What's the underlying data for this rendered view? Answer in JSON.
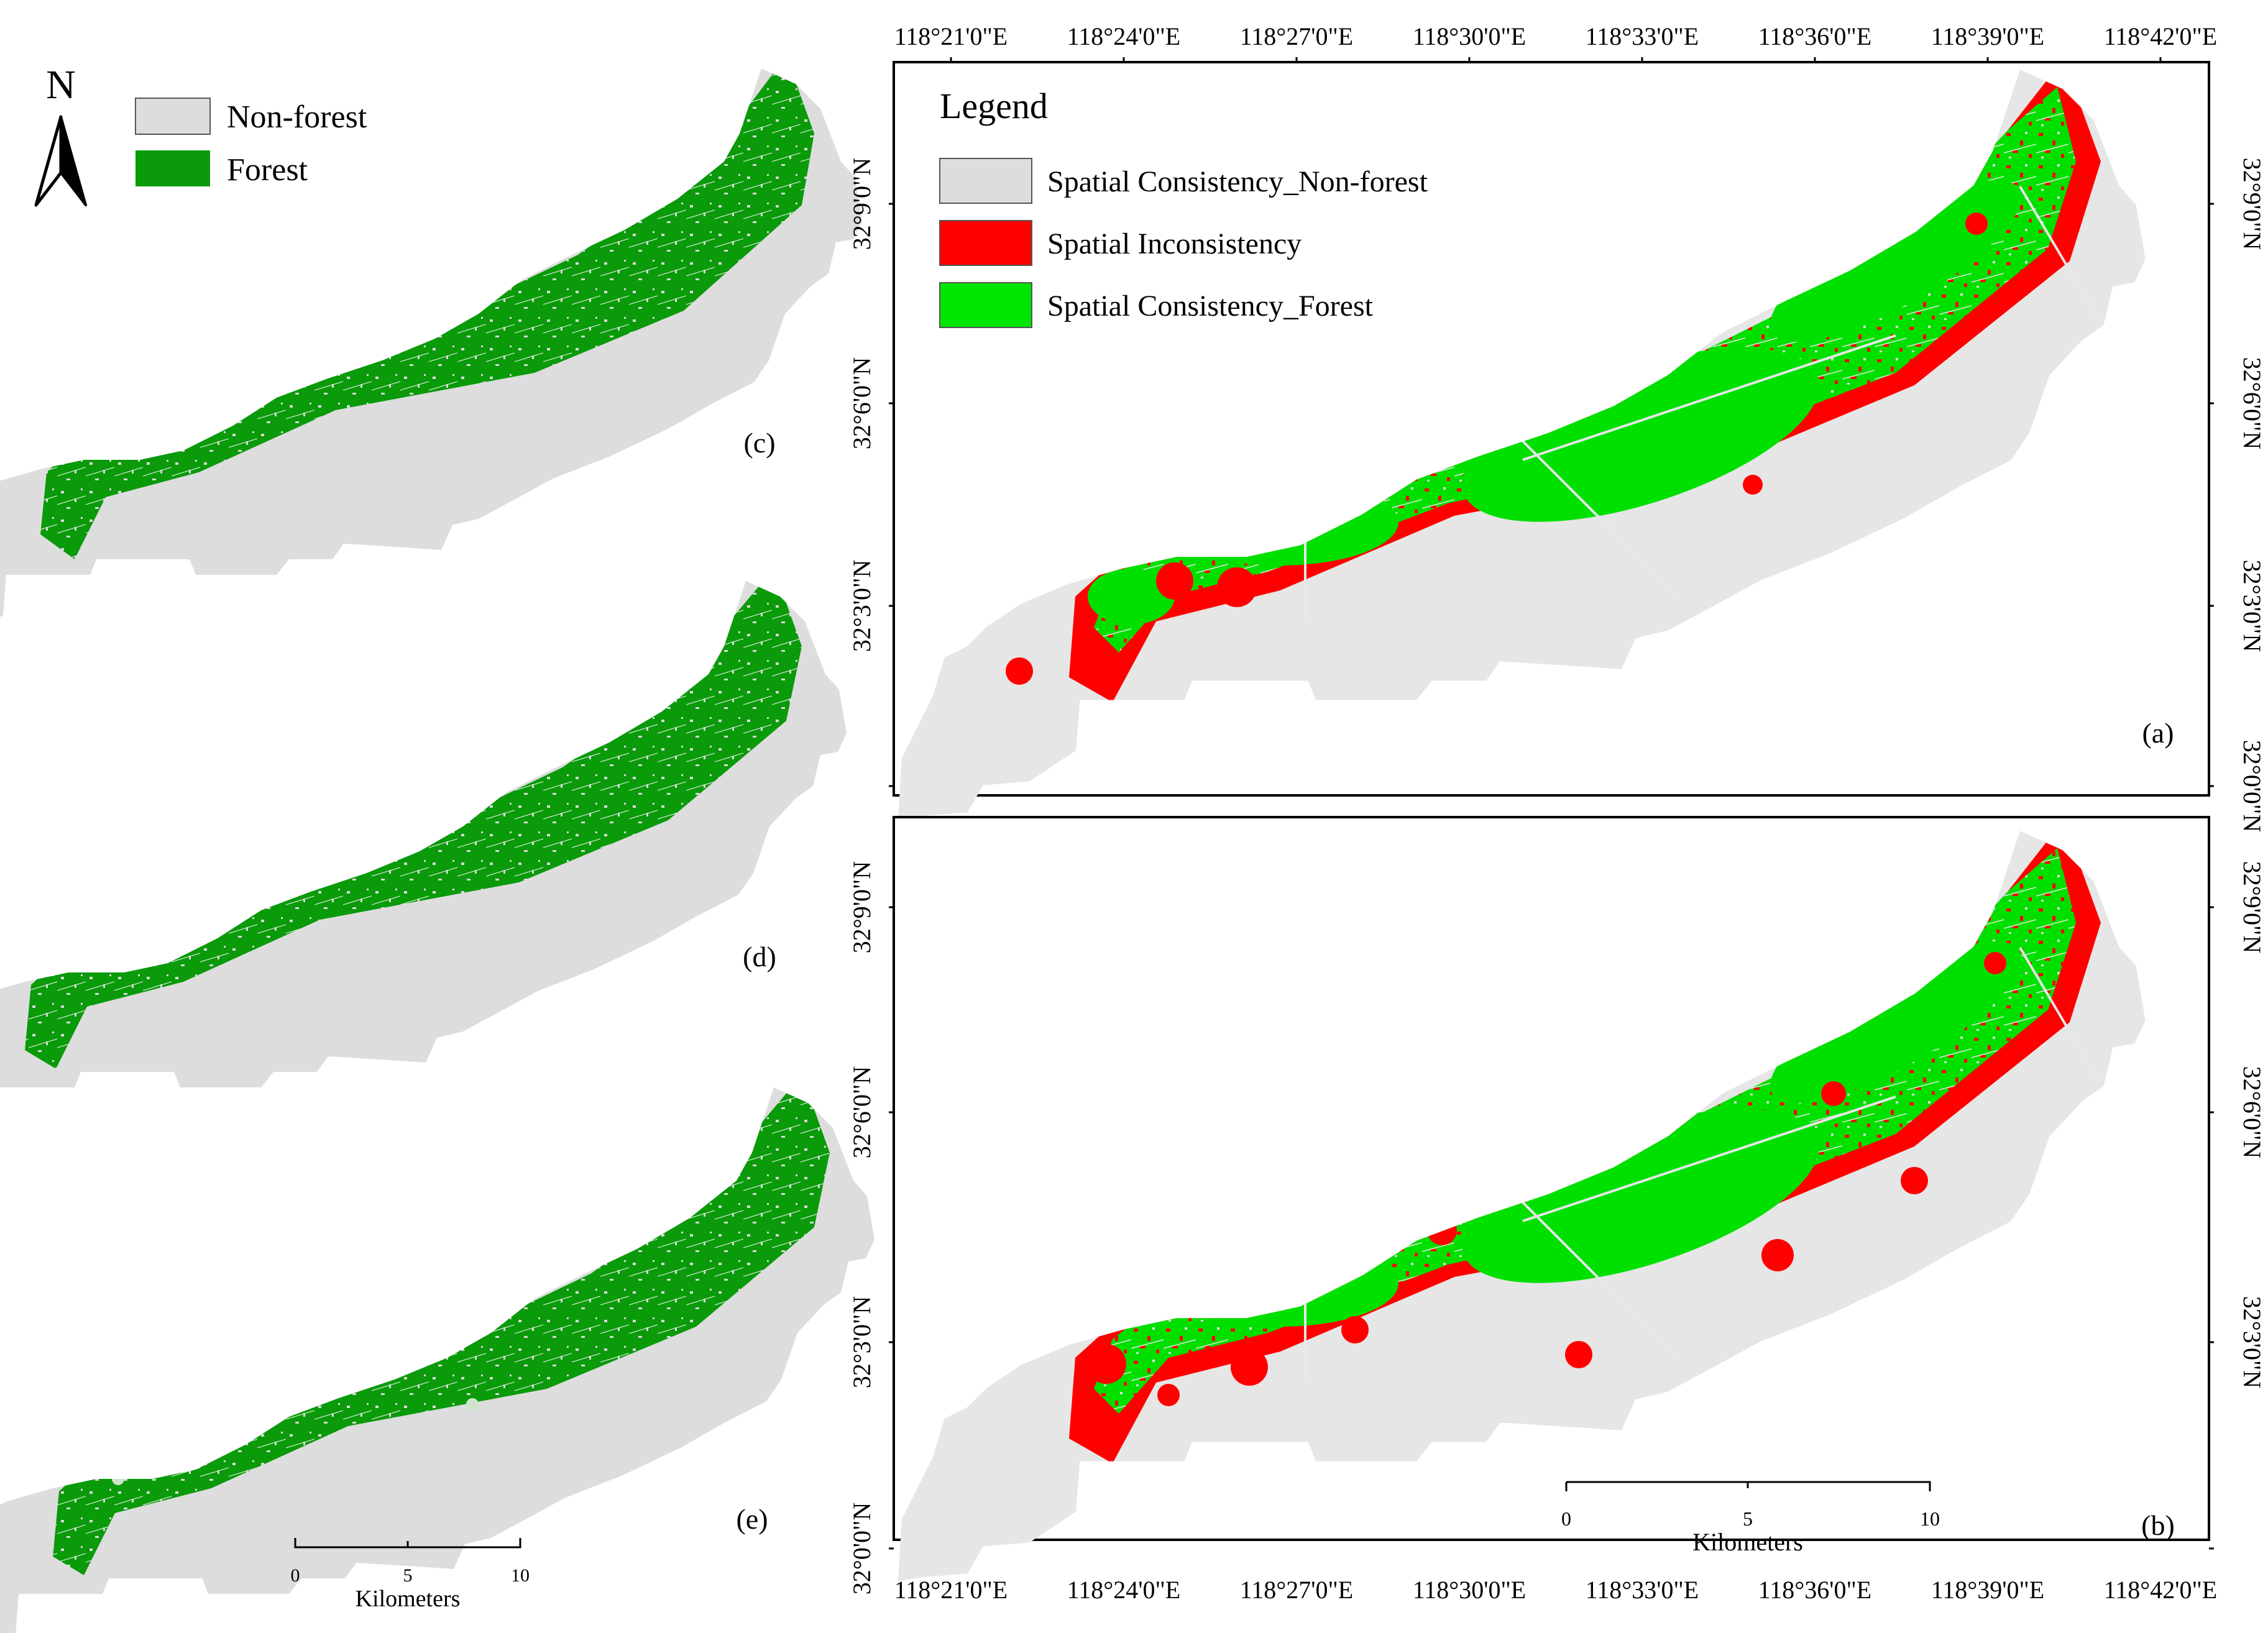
{
  "colors": {
    "non_forest": "#dddddd",
    "forest_dark": "#0a9a0a",
    "inconsistency": "#ff0000",
    "consistency_forest": "#00e600",
    "frame": "#000000"
  },
  "north_arrow": {
    "label": "N"
  },
  "left_legend": {
    "items": [
      {
        "label": "Non-forest",
        "color_key": "non_forest"
      },
      {
        "label": "Forest",
        "color_key": "forest_dark"
      }
    ]
  },
  "panel_labels": {
    "a": "(a)",
    "b": "(b)",
    "c": "(c)",
    "d": "(d)",
    "e": "(e)"
  },
  "main_legend": {
    "title": "Legend",
    "items": [
      {
        "label": "Spatial Consistency_Non-forest",
        "color_key": "non_forest"
      },
      {
        "label": "Spatial Inconsistency",
        "color_key": "inconsistency"
      },
      {
        "label": "Spatial Consistency_Forest",
        "color_key": "consistency_forest"
      }
    ]
  },
  "longitude_ticks": [
    "118°21'0\"E",
    "118°24'0\"E",
    "118°27'0\"E",
    "118°30'0\"E",
    "118°33'0\"E",
    "118°36'0\"E",
    "118°39'0\"E",
    "118°42'0\"E"
  ],
  "latitude_ticks_a": [
    "32°9'0\"N",
    "32°6'0\"N",
    "32°3'0\"N",
    "32°0'0\"N"
  ],
  "latitude_ticks_b": [
    "32°9'0\"N",
    "32°6'0\"N",
    "32°3'0\"N",
    "32°0'0\"N"
  ],
  "scale_bar_left": {
    "ticks": [
      "0",
      "5",
      "10"
    ],
    "unit": "Kilometers"
  },
  "scale_bar_right": {
    "ticks": [
      "0",
      "5",
      "10"
    ],
    "unit": "Kilometers"
  }
}
